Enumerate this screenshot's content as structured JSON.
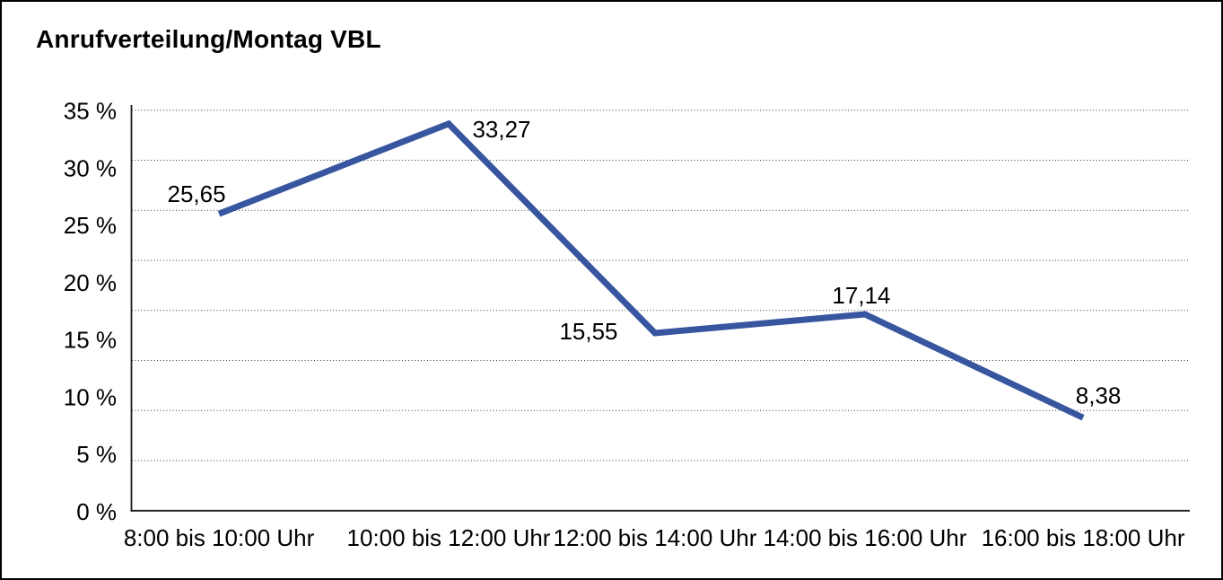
{
  "panel": {
    "background": "#ffffff",
    "border_color": "#000000"
  },
  "chart_data": {
    "type": "line",
    "title": "Anrufverteilung/Montag VBL",
    "categories": [
      "8:00 bis 10:00 Uhr",
      "10:00 bis 12:00 Uhr",
      "12:00 bis 14:00 Uhr",
      "14:00 bis 16:00 Uhr",
      "16:00 bis 18:00 Uhr"
    ],
    "values": [
      25.65,
      33.27,
      15.55,
      17.14,
      8.38
    ],
    "value_labels": [
      "25,65",
      "33,27",
      "15,55",
      "17,14",
      "8,38"
    ],
    "y_ticks": [
      {
        "value": 35,
        "label": "35 %"
      },
      {
        "value": 30,
        "label": "30 %"
      },
      {
        "value": 25,
        "label": "25 %"
      },
      {
        "value": 20,
        "label": "20 %"
      },
      {
        "value": 15,
        "label": "15 %"
      },
      {
        "value": 10,
        "label": "10 %"
      },
      {
        "value": 5,
        "label": "5 %"
      },
      {
        "value": 0,
        "label": "0 %"
      }
    ],
    "ylim": [
      0,
      35
    ],
    "xlabel": "",
    "ylabel": "",
    "legend": "none",
    "grid": {
      "horizontal": true,
      "style": "dotted"
    },
    "colors": {
      "line": "#37569F",
      "text": "#000000",
      "grid": "#3a3a3a",
      "axis": "#1c1c1c"
    }
  }
}
